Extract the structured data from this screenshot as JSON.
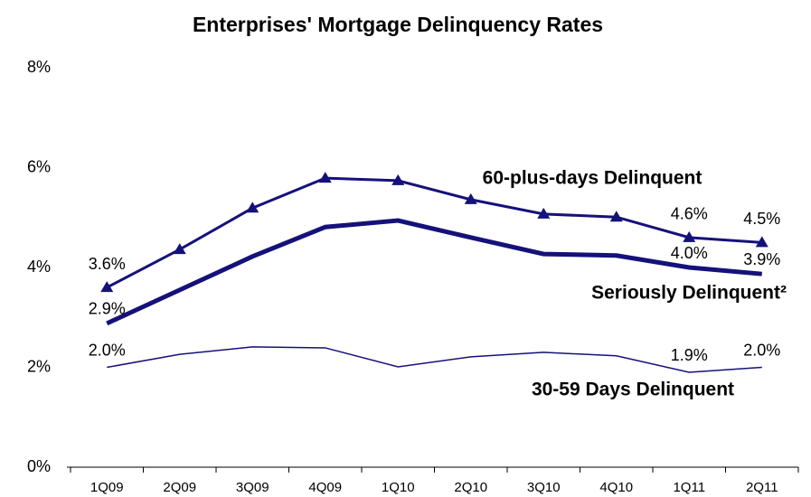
{
  "chart_data": {
    "type": "line",
    "title": "Enterprises' Mortgage Delinquency Rates",
    "categories": [
      "1Q09",
      "2Q09",
      "3Q09",
      "4Q09",
      "1Q10",
      "2Q10",
      "3Q10",
      "4Q10",
      "1Q11",
      "2Q11"
    ],
    "ylim": [
      0,
      8
    ],
    "yticks": [
      {
        "value": 0,
        "label": "0%"
      },
      {
        "value": 2,
        "label": "2%"
      },
      {
        "value": 4,
        "label": "4%"
      },
      {
        "value": 6,
        "label": "6%"
      },
      {
        "value": 8,
        "label": "8%"
      }
    ],
    "grid": false,
    "series": [
      {
        "name": "60-plus-days Delinquent",
        "color": "#15117a",
        "marker": "triangle",
        "values": [
          3.6,
          4.36,
          5.19,
          5.79,
          5.74,
          5.36,
          5.07,
          5.01,
          4.6,
          4.5
        ],
        "value_labels": [
          "3.6%",
          null,
          null,
          null,
          null,
          null,
          null,
          null,
          "4.6%",
          "4.5%"
        ]
      },
      {
        "name": "Seriously Delinquent²",
        "color": "#15117a",
        "values": [
          2.88,
          3.55,
          4.22,
          4.81,
          4.94,
          4.6,
          4.27,
          4.24,
          4.0,
          3.87
        ],
        "value_labels": [
          "2.9%",
          null,
          null,
          null,
          null,
          null,
          null,
          null,
          "4.0%",
          "3.9%"
        ]
      },
      {
        "name": "30-59 Days Delinquent",
        "color": "#15117a",
        "values": [
          2.0,
          2.26,
          2.41,
          2.39,
          2.01,
          2.21,
          2.3,
          2.23,
          1.9,
          2.0
        ],
        "value_labels": [
          "2.0%",
          null,
          null,
          null,
          null,
          null,
          null,
          null,
          "1.9%",
          "2.0%"
        ]
      }
    ]
  }
}
